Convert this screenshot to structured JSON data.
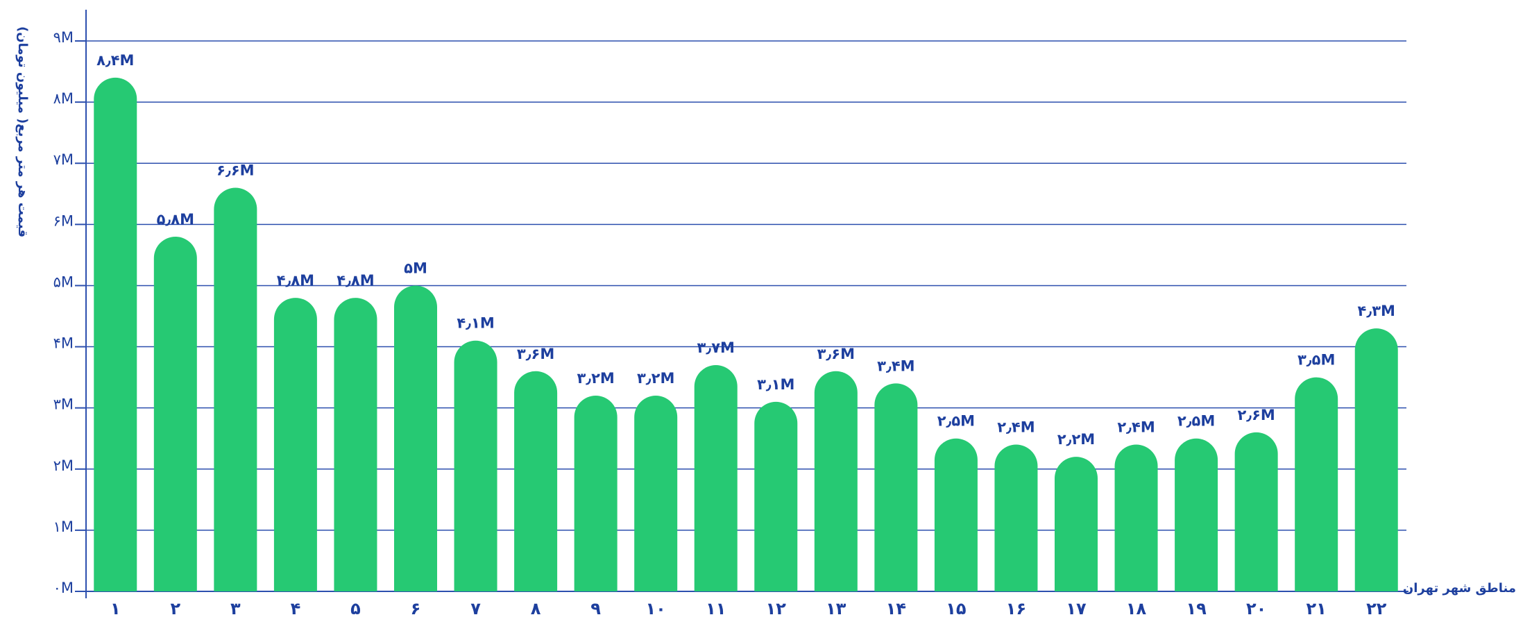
{
  "chart_data": {
    "type": "bar",
    "x_label": "مناطق شهر تهران",
    "y_label": "قیمت هر متر مربع( میلیون تومان)",
    "categories": [
      "۱",
      "۲",
      "۳",
      "۴",
      "۵",
      "۶",
      "۷",
      "۸",
      "۹",
      "۱۰",
      "۱۱",
      "۱۲",
      "۱۳",
      "۱۴",
      "۱۵",
      "۱۶",
      "۱۷",
      "۱۸",
      "۱۹",
      "۲۰",
      "۲۱",
      "۲۲"
    ],
    "values": [
      8.4,
      5.8,
      6.6,
      4.8,
      4.8,
      5,
      4.1,
      3.6,
      3.2,
      3.2,
      3.7,
      3.1,
      3.6,
      3.4,
      2.5,
      2.4,
      2.2,
      2.4,
      2.5,
      2.6,
      3.5,
      4.3
    ],
    "value_labels": [
      "۸٫۴M",
      "۵٫۸M",
      "۶٫۶M",
      "۴٫۸M",
      "۴٫۸M",
      "۵M",
      "۴٫۱M",
      "۳٫۶M",
      "۳٫۲M",
      "۳٫۲M",
      "۳٫۷M",
      "۳٫۱M",
      "۳٫۶M",
      "۳٫۴M",
      "۲٫۵M",
      "۲٫۴M",
      "۲٫۲M",
      "۲٫۴M",
      "۲٫۵M",
      "۲٫۶M",
      "۳٫۵M",
      "۴٫۳M"
    ],
    "color": "#26c973",
    "ylim": [
      0,
      9
    ],
    "yticks": [
      {
        "value": 0,
        "label": "۰M"
      },
      {
        "value": 1,
        "label": "۱M"
      },
      {
        "value": 2,
        "label": "۲M"
      },
      {
        "value": 3,
        "label": "۳M"
      },
      {
        "value": 4,
        "label": "۴M"
      },
      {
        "value": 5,
        "label": "۵M"
      },
      {
        "value": 6,
        "label": "۶M"
      },
      {
        "value": 7,
        "label": "۷M"
      },
      {
        "value": 8,
        "label": "۸M"
      },
      {
        "value": 9,
        "label": "۹M"
      }
    ],
    "grid": true
  }
}
